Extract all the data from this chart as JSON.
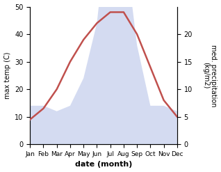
{
  "months": [
    "Jan",
    "Feb",
    "Mar",
    "Apr",
    "May",
    "Jun",
    "Jul",
    "Aug",
    "Sep",
    "Oct",
    "Nov",
    "Dec"
  ],
  "temperature": [
    9,
    13,
    20,
    30,
    38,
    44,
    48,
    48,
    40,
    28,
    16,
    10
  ],
  "precipitation": [
    7,
    7,
    6,
    7,
    12,
    22,
    44,
    38,
    18,
    7,
    7,
    6
  ],
  "temp_color": "#c0504d",
  "precip_fill_color": "#b8c4e8",
  "ylabel_left": "max temp (C)",
  "ylabel_right": "med. precipitation\n(kg/m2)",
  "xlabel": "date (month)",
  "ylim_left": [
    0,
    50
  ],
  "ylim_right": [
    0,
    25
  ],
  "yticks_left": [
    0,
    10,
    20,
    30,
    40,
    50
  ],
  "yticks_right_vals": [
    0,
    5,
    10,
    15,
    20
  ],
  "yticks_right_labels": [
    "0",
    "5",
    "10",
    "15",
    "20"
  ],
  "bg_color": "#ffffff",
  "temp_linewidth": 1.8,
  "precip_alpha": 0.6
}
